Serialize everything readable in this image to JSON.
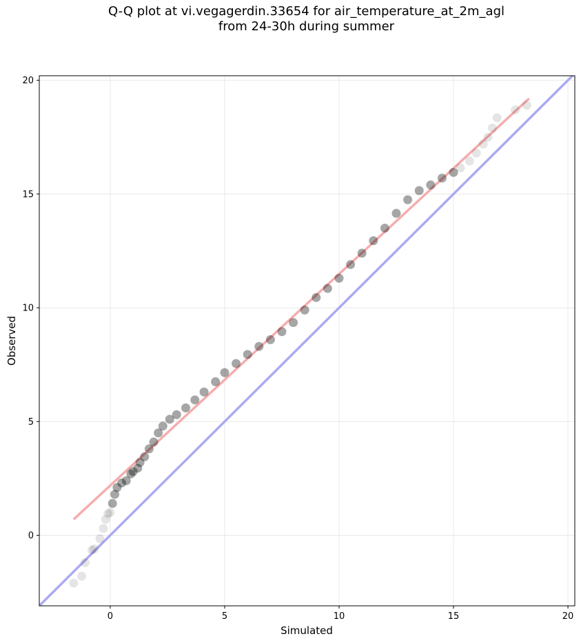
{
  "chart_data": {
    "type": "scatter",
    "title_line1": "Q-Q plot at vi.vegagerdin.33654 for air_temperature_at_2m_agl",
    "title_line2": "from 24-30h during summer",
    "xlabel": "Simulated",
    "ylabel": "Observed",
    "xlim": [
      -3.1,
      20.3
    ],
    "ylim": [
      -3.1,
      20.2
    ],
    "x_ticks": [
      0,
      5,
      10,
      15,
      20
    ],
    "y_ticks": [
      0,
      5,
      10,
      15,
      20
    ],
    "grid": true,
    "identity_line": {
      "color": "#aaaaf2"
    },
    "fit_line": {
      "color": "#f4a9a9",
      "x": [
        -1.6,
        18.3
      ],
      "y": [
        0.7,
        19.2
      ]
    },
    "points": {
      "color": "#000000",
      "x": [
        -1.6,
        -1.25,
        -1.1,
        -0.8,
        -0.7,
        -0.45,
        -0.3,
        -0.2,
        -0.1,
        0,
        0.1,
        0.2,
        0.3,
        0.5,
        0.7,
        0.9,
        1.0,
        1.2,
        1.3,
        1.5,
        1.7,
        1.9,
        2.1,
        2.3,
        2.6,
        2.9,
        3.3,
        3.7,
        4.1,
        4.6,
        5.0,
        5.5,
        6.0,
        6.5,
        7.0,
        7.5,
        8.0,
        8.5,
        9.0,
        9.5,
        10.0,
        10.5,
        11.0,
        11.5,
        12.0,
        12.5,
        13.0,
        13.5,
        14.0,
        14.5,
        15.0,
        15.3,
        15.7,
        16.0,
        16.3,
        16.5,
        16.7,
        16.9,
        17.7,
        18.2
      ],
      "y": [
        -2.1,
        -1.8,
        -1.2,
        -0.65,
        -0.6,
        -0.15,
        0.3,
        0.7,
        0.95,
        1.0,
        1.4,
        1.8,
        2.1,
        2.3,
        2.4,
        2.7,
        2.8,
        2.95,
        3.2,
        3.45,
        3.8,
        4.1,
        4.5,
        4.8,
        5.1,
        5.3,
        5.6,
        5.95,
        6.3,
        6.75,
        7.15,
        7.55,
        7.95,
        8.3,
        8.6,
        8.95,
        9.35,
        9.9,
        10.45,
        10.85,
        11.3,
        11.9,
        12.4,
        12.95,
        13.5,
        14.15,
        14.75,
        15.15,
        15.4,
        15.7,
        15.95,
        16.15,
        16.45,
        16.8,
        17.2,
        17.5,
        17.9,
        18.35,
        18.7,
        18.9
      ]
    }
  }
}
